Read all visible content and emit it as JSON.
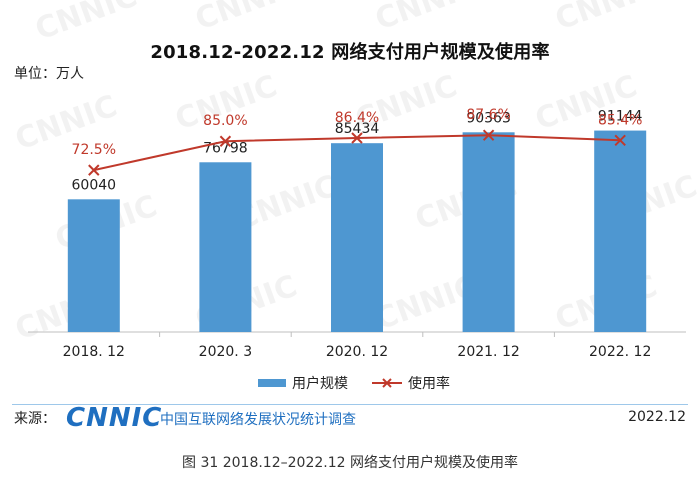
{
  "title": "2018.12-2022.12 网络支付用户规模及使用率",
  "unit_label": "单位：万人",
  "watermark_text": "CNNIC",
  "legend": {
    "bar_label": "用户规模",
    "line_label": "使用率"
  },
  "source": {
    "label": "来源：",
    "brand": "CNNIC",
    "brand_desc": "中国互联网络发展状况统计调查",
    "date": "2022.12"
  },
  "caption": "图 31  2018.12–2022.12 网络支付用户规模及使用率",
  "colors": {
    "bar": "#4e97d1",
    "line": "#c0392b",
    "brand": "#1f6fc0"
  },
  "chart_data": {
    "type": "bar",
    "categories": [
      "2018. 12",
      "2020. 3",
      "2020. 12",
      "2021. 12",
      "2022. 12"
    ],
    "series": [
      {
        "name": "用户规模",
        "type": "bar",
        "values": [
          60040,
          76798,
          85434,
          90363,
          91144
        ],
        "labels": [
          "60040",
          "76798",
          "85434",
          "90363",
          "91144"
        ]
      },
      {
        "name": "使用率",
        "type": "line",
        "values": [
          72.5,
          85.0,
          86.4,
          87.6,
          85.4
        ],
        "labels": [
          "72.5%",
          "85.0%",
          "86.4%",
          "87.6%",
          "85.4%"
        ]
      }
    ],
    "grid": false,
    "legend_position": "bottom"
  }
}
